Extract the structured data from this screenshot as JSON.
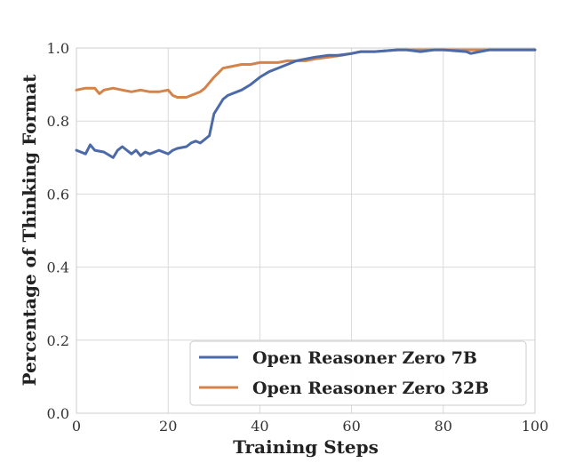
{
  "chart_data": {
    "type": "line",
    "title": "",
    "xlabel": "Training Steps",
    "ylabel": "Percentage of Thinking Format",
    "xlim": [
      0,
      100
    ],
    "ylim": [
      0.0,
      1.0
    ],
    "xticks": [
      "0",
      "20",
      "40",
      "60",
      "80",
      "100"
    ],
    "yticks": [
      "0.0",
      "0.2",
      "0.4",
      "0.6",
      "0.8",
      "1.0"
    ],
    "grid": true,
    "legend_position": "bottom-right",
    "series": [
      {
        "name": "Open Reasoner Zero 7B",
        "color": "#4c6aa8",
        "x": [
          0,
          2,
          3,
          4,
          6,
          8,
          9,
          10,
          12,
          13,
          14,
          15,
          16,
          18,
          20,
          21,
          22,
          24,
          25,
          26,
          27,
          28,
          29,
          30,
          32,
          33,
          35,
          36,
          38,
          40,
          42,
          44,
          46,
          48,
          50,
          52,
          55,
          57,
          60,
          62,
          65,
          70,
          72,
          75,
          78,
          80,
          85,
          86,
          90,
          95,
          100
        ],
        "y": [
          0.72,
          0.71,
          0.735,
          0.72,
          0.715,
          0.7,
          0.72,
          0.73,
          0.71,
          0.72,
          0.705,
          0.715,
          0.71,
          0.72,
          0.71,
          0.72,
          0.725,
          0.73,
          0.74,
          0.745,
          0.74,
          0.75,
          0.76,
          0.82,
          0.86,
          0.87,
          0.88,
          0.885,
          0.9,
          0.92,
          0.935,
          0.945,
          0.955,
          0.965,
          0.97,
          0.975,
          0.98,
          0.98,
          0.985,
          0.99,
          0.99,
          0.995,
          0.995,
          0.99,
          0.995,
          0.995,
          0.99,
          0.985,
          0.995,
          0.995,
          0.995
        ]
      },
      {
        "name": "Open Reasoner Zero 32B",
        "color": "#d4834a",
        "x": [
          0,
          2,
          4,
          5,
          6,
          8,
          10,
          12,
          14,
          16,
          18,
          20,
          21,
          22,
          24,
          25,
          26,
          27,
          28,
          30,
          32,
          34,
          36,
          38,
          40,
          42,
          44,
          46,
          48,
          50,
          52,
          55,
          58,
          60,
          62,
          65,
          70,
          75,
          80,
          85,
          90,
          95,
          100
        ],
        "y": [
          0.885,
          0.89,
          0.89,
          0.875,
          0.885,
          0.89,
          0.885,
          0.88,
          0.885,
          0.88,
          0.88,
          0.885,
          0.87,
          0.865,
          0.865,
          0.87,
          0.875,
          0.88,
          0.89,
          0.92,
          0.945,
          0.95,
          0.955,
          0.955,
          0.96,
          0.96,
          0.96,
          0.965,
          0.965,
          0.965,
          0.97,
          0.975,
          0.98,
          0.985,
          0.99,
          0.99,
          0.995,
          0.995,
          0.995,
          0.995,
          0.995,
          0.995,
          0.995
        ]
      }
    ]
  }
}
